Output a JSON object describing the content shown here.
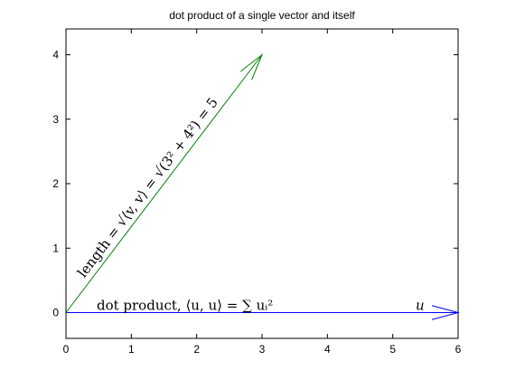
{
  "chart_data": {
    "type": "line",
    "title": "dot product of a single vector and itself",
    "xlabel": "",
    "ylabel": "",
    "xlim": [
      0,
      6
    ],
    "ylim": [
      -0.4,
      4.4
    ],
    "xticks": [
      "0",
      "1",
      "2",
      "3",
      "4",
      "5",
      "6"
    ],
    "yticks": [
      "0",
      "1",
      "2",
      "3",
      "4"
    ],
    "grid": false,
    "series": [
      {
        "label_text": "u",
        "x": [
          0,
          6
        ],
        "y": [
          0,
          0
        ],
        "color": "#0000ff"
      },
      {
        "x": [
          0,
          3
        ],
        "y": [
          0,
          4
        ],
        "color": "#008000"
      }
    ],
    "annotations": {
      "length_label": "length = √⟨v, v⟩ = √(3² + 4²) = 5",
      "dot_label": "dot product, ⟨u, u⟩ = ∑ uᵢ²",
      "u_label": "u"
    }
  }
}
